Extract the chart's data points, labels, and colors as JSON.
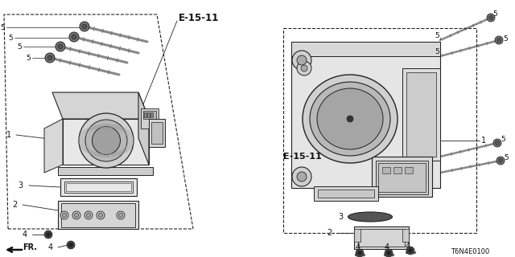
{
  "bg": "#f5f5f0",
  "lc": "#222222",
  "tc": "#111111",
  "part_id": "T6N4E0100",
  "E1511": "E-15-11",
  "FR": "FR.",
  "figw": 6.4,
  "figh": 3.2,
  "dpi": 100
}
